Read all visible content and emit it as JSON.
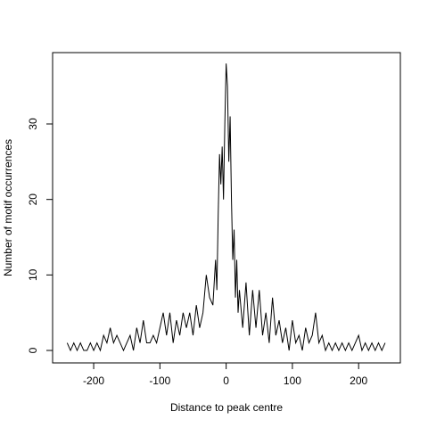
{
  "chart_data": {
    "type": "line",
    "x_label": "Distance to peak centre",
    "y_label": "Number of motif occurrences",
    "x": [
      -240,
      -235,
      -230,
      -225,
      -220,
      -215,
      -210,
      -205,
      -200,
      -195,
      -190,
      -185,
      -180,
      -175,
      -170,
      -165,
      -160,
      -155,
      -150,
      -145,
      -140,
      -135,
      -130,
      -125,
      -120,
      -115,
      -110,
      -105,
      -100,
      -95,
      -90,
      -85,
      -80,
      -75,
      -70,
      -65,
      -60,
      -55,
      -50,
      -45,
      -40,
      -35,
      -30,
      -25,
      -20,
      -18,
      -16,
      -14,
      -12,
      -10,
      -8,
      -6,
      -4,
      -2,
      0,
      2,
      4,
      6,
      8,
      10,
      12,
      14,
      16,
      18,
      20,
      25,
      30,
      35,
      40,
      45,
      50,
      55,
      60,
      65,
      70,
      75,
      80,
      85,
      90,
      95,
      100,
      105,
      110,
      115,
      120,
      125,
      130,
      135,
      140,
      145,
      150,
      155,
      160,
      165,
      170,
      175,
      180,
      185,
      190,
      195,
      200,
      205,
      210,
      215,
      220,
      225,
      230,
      235,
      240
    ],
    "series": [
      {
        "color": "#000000",
        "values": [
          1,
          0,
          1,
          0,
          1,
          0,
          0,
          1,
          0,
          1,
          0,
          2,
          1,
          3,
          1,
          2,
          1,
          0,
          1,
          2,
          0,
          3,
          1,
          4,
          1,
          1,
          2,
          1,
          3,
          5,
          2,
          5,
          1,
          4,
          2,
          5,
          3,
          5,
          2,
          6,
          3,
          5,
          10,
          7,
          6,
          9,
          12,
          8,
          18,
          26,
          22,
          27,
          20,
          30,
          38,
          35,
          25,
          31,
          20,
          12,
          16,
          7,
          12,
          5,
          8,
          3,
          9,
          2,
          8,
          3,
          8,
          2,
          5,
          1,
          7,
          2,
          4,
          1,
          3,
          0,
          4,
          1,
          2,
          0,
          3,
          1,
          2,
          5,
          1,
          2,
          0,
          1,
          0,
          1,
          0,
          1,
          0,
          1,
          0,
          1,
          2,
          0,
          1,
          0,
          1,
          0,
          1,
          0,
          1
        ]
      }
    ],
    "xlim": [
      -262,
      263
    ],
    "ylim": [
      -1.65,
      39.45
    ],
    "xticks": [
      -200,
      -100,
      0,
      100,
      200
    ],
    "yticks": [
      0,
      10,
      20,
      30
    ]
  }
}
